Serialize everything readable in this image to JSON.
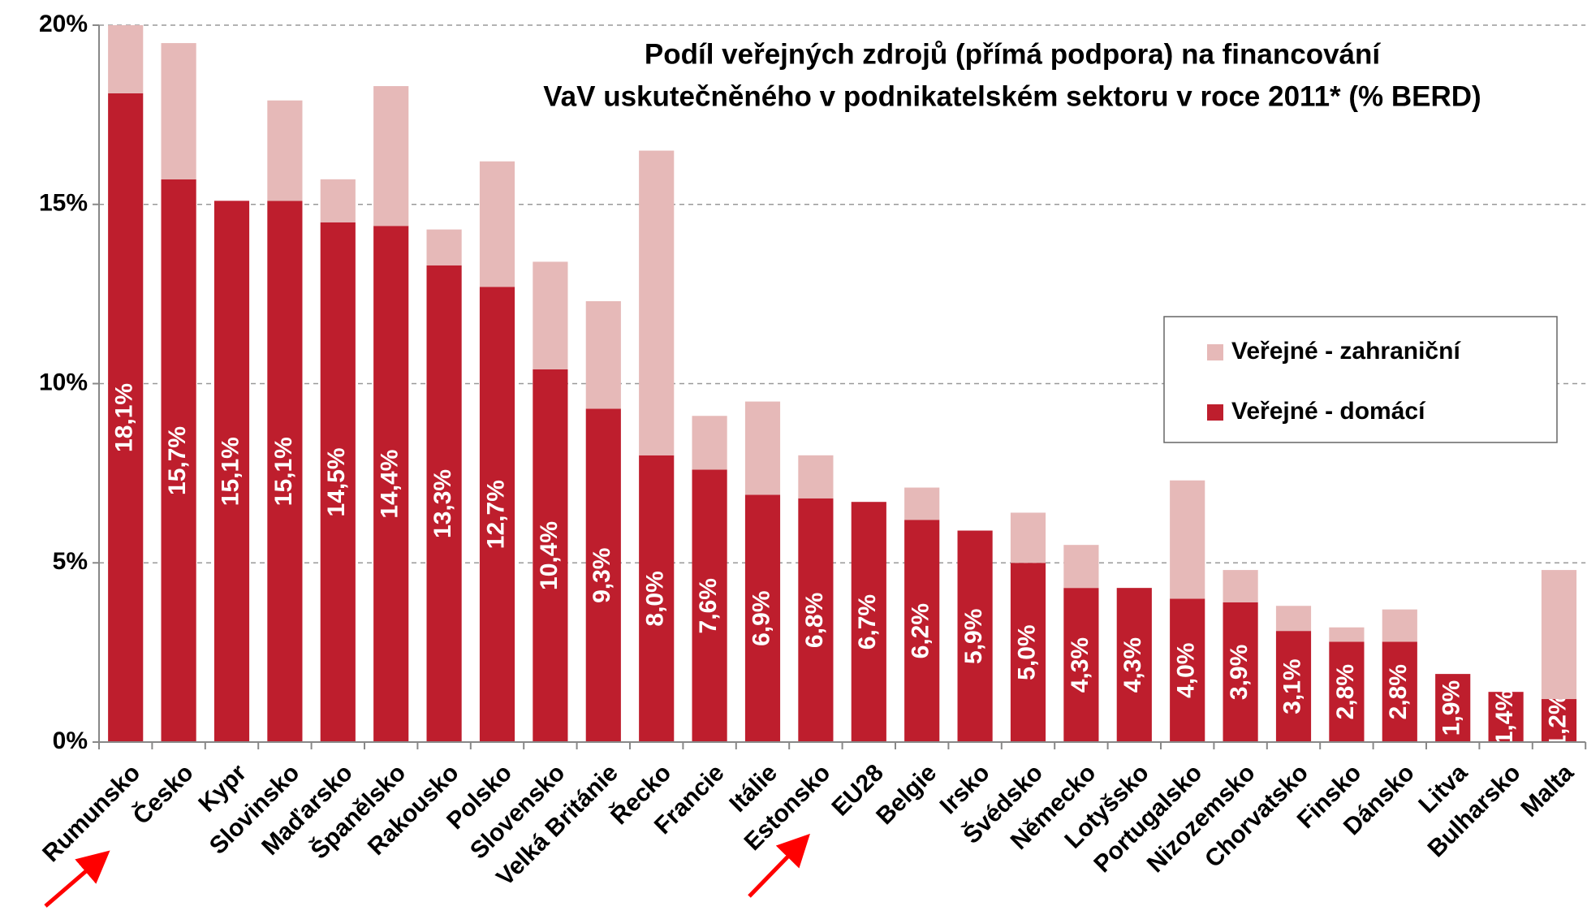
{
  "chart_data": {
    "type": "stacked_bar",
    "title": [
      "Podíl veřejných zdrojů (přímá podpora) na financování",
      "VaV uskutečněného v podnikatelském sektoru v roce 2011* (% BERD)"
    ],
    "categories": [
      "Rumunsko",
      "Česko",
      "Kypr",
      "Slovinsko",
      "Maďarsko",
      "Španělsko",
      "Rakousko",
      "Polsko",
      "Slovensko",
      "Velká Británie",
      "Řecko",
      "Francie",
      "Itálie",
      "Estonsko",
      "EU28",
      "Belgie",
      "Irsko",
      "Švédsko",
      "Německo",
      "Lotyšsko",
      "Portugalsko",
      "Nizozemsko",
      "Chorvatsko",
      "Finsko",
      "Dánsko",
      "Litva",
      "Bulharsko",
      "Malta"
    ],
    "series": [
      {
        "name": "Veřejné - domácí",
        "color": "#be1e2d",
        "values": [
          18.1,
          15.7,
          15.1,
          15.1,
          14.5,
          14.4,
          13.3,
          12.7,
          10.4,
          9.3,
          8.0,
          7.6,
          6.9,
          6.8,
          6.7,
          6.2,
          5.9,
          5.0,
          4.3,
          4.3,
          4.0,
          3.9,
          3.1,
          2.8,
          2.8,
          1.9,
          1.4,
          1.2
        ],
        "value_labels": [
          "18,1%",
          "15,7%",
          "15,1%",
          "15,1%",
          "14,5%",
          "14,4%",
          "13,3%",
          "12,7%",
          "10,4%",
          "9,3%",
          "8,0%",
          "7,6%",
          "6,9%",
          "6,8%",
          "6,7%",
          "6,2%",
          "5,9%",
          "5,0%",
          "4,3%",
          "4,3%",
          "4,0%",
          "3,9%",
          "3,1%",
          "2,8%",
          "2,8%",
          "1,9%",
          "1,4%",
          "1,2%"
        ]
      },
      {
        "name": "Veřejné - zahraniční",
        "color": "#e6b9b8",
        "values": [
          1.9,
          3.8,
          0,
          2.8,
          1.2,
          3.9,
          1.0,
          3.5,
          3.0,
          3.0,
          8.5,
          1.5,
          2.6,
          1.2,
          0,
          0.9,
          0,
          1.4,
          1.2,
          0,
          3.3,
          0.9,
          0.7,
          0.4,
          0.9,
          0,
          0,
          3.6
        ]
      }
    ],
    "ylim": [
      0,
      20
    ],
    "yticks": [
      {
        "value": 0,
        "label": "0%"
      },
      {
        "value": 5,
        "label": "5%"
      },
      {
        "value": 10,
        "label": "10%"
      },
      {
        "value": 15,
        "label": "15%"
      },
      {
        "value": 20,
        "label": "20%"
      }
    ],
    "grid": true,
    "legend": "right"
  }
}
